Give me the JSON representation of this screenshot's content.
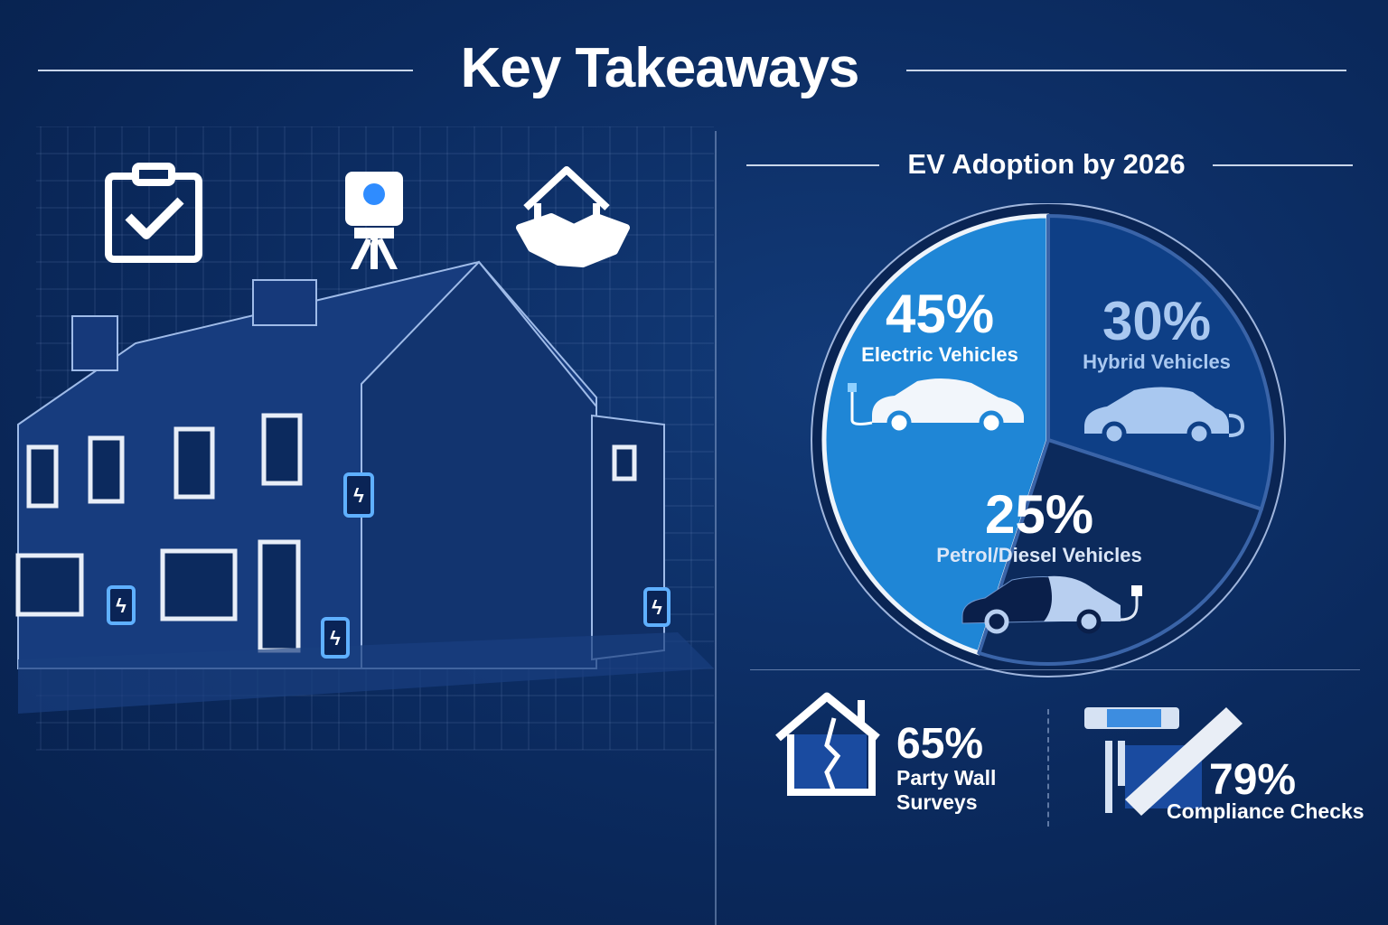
{
  "header": {
    "title": "Key Takeaways"
  },
  "chart_data": {
    "type": "pie",
    "title": "EV Adoption by 2026",
    "categories": [
      "Electric Vehicles",
      "Hybrid Vehicles",
      "Petrol/Diesel Vehicles"
    ],
    "values": [
      45,
      30,
      25
    ],
    "value_labels": [
      "45%",
      "30%",
      "25%"
    ],
    "colors": [
      "#1f86d6",
      "#0e3f86",
      "#0c2a5c"
    ]
  },
  "left_panel": {
    "icons": [
      "clipboard-check-icon",
      "surveying-instrument-icon",
      "house-handshake-icon"
    ]
  },
  "stats": [
    {
      "value": "65%",
      "label_line1": "Party Wall",
      "label_line2": "Surveys",
      "icon": "cracked-house-icon"
    },
    {
      "value": "79%",
      "label": "Compliance Checks",
      "icon": "measuring-tools-icon"
    }
  ],
  "colors": {
    "background": "#0b2a5e",
    "accent": "#2f8cff",
    "text": "#ffffff"
  }
}
